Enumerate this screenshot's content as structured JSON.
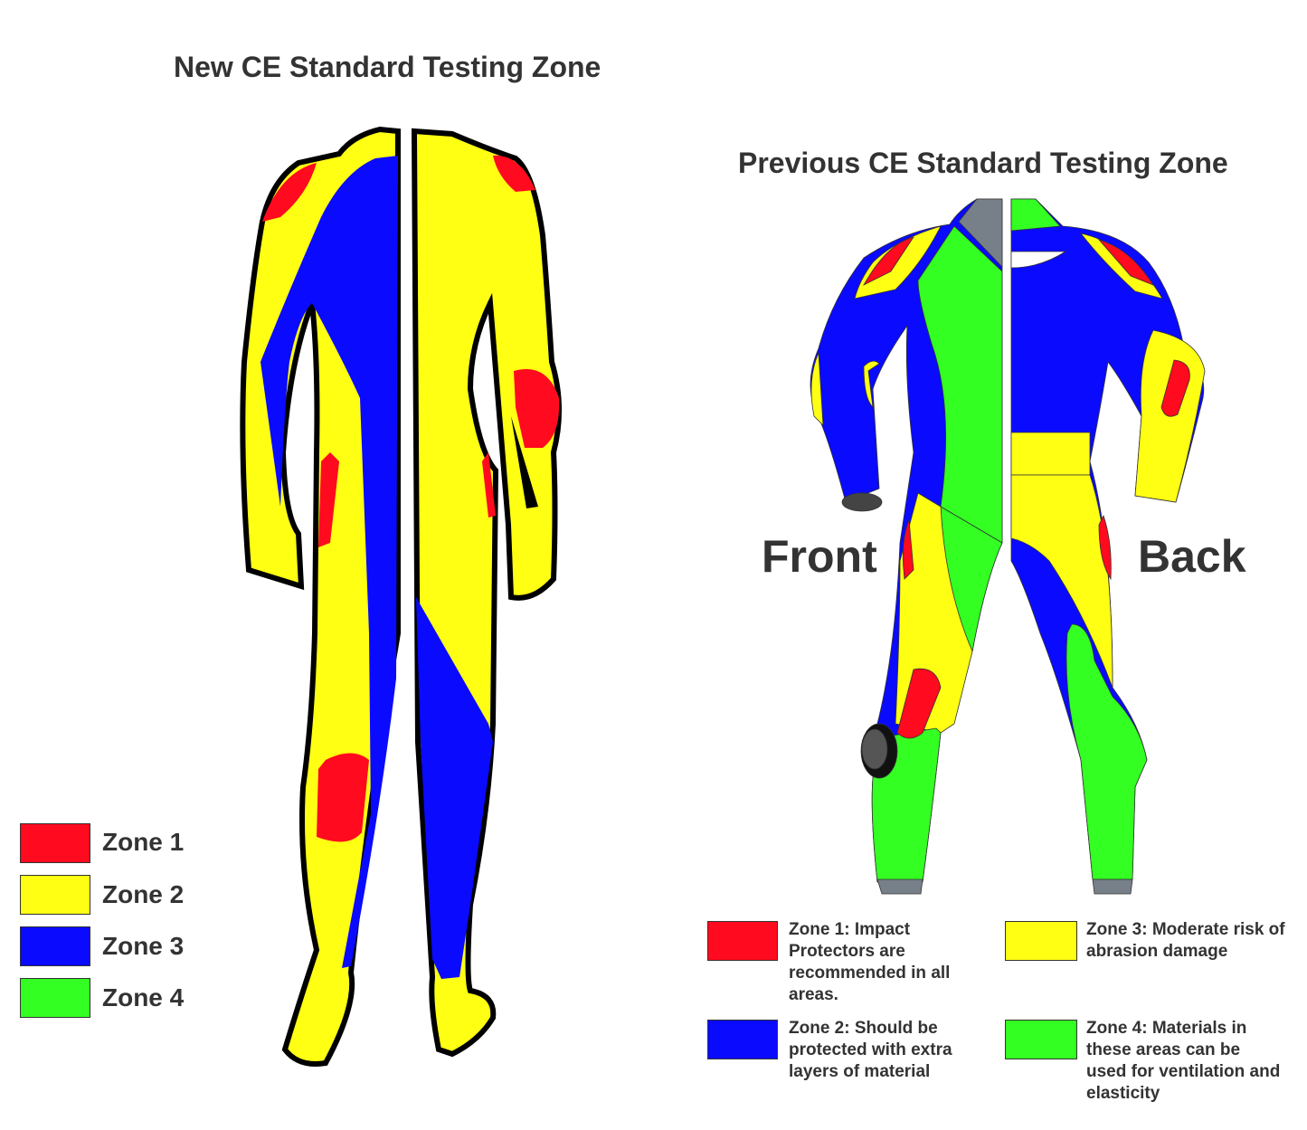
{
  "new_standard": {
    "title": "New CE Standard Testing Zone",
    "legend": [
      {
        "label": "Zone 1",
        "color": "#ff0a1e"
      },
      {
        "label": "Zone 2",
        "color": "#ffff14"
      },
      {
        "label": "Zone 3",
        "color": "#0a0aff"
      },
      {
        "label": "Zone 4",
        "color": "#33ff22"
      }
    ]
  },
  "previous_standard": {
    "title": "Previous CE Standard Testing Zone",
    "front_label": "Front",
    "back_label": "Back",
    "legend": [
      {
        "text": "Zone 1: Impact Protectors are recommended in all areas.",
        "color": "#ff0a1e"
      },
      {
        "text": "Zone 3: Moderate risk of abrasion damage",
        "color": "#ffff14"
      },
      {
        "text": "Zone 2: Should be protected with extra layers of material",
        "color": "#0a0aff"
      },
      {
        "text": "Zone 4: Materials in these areas can be used for ventilation and elasticity",
        "color": "#33ff22"
      }
    ]
  }
}
